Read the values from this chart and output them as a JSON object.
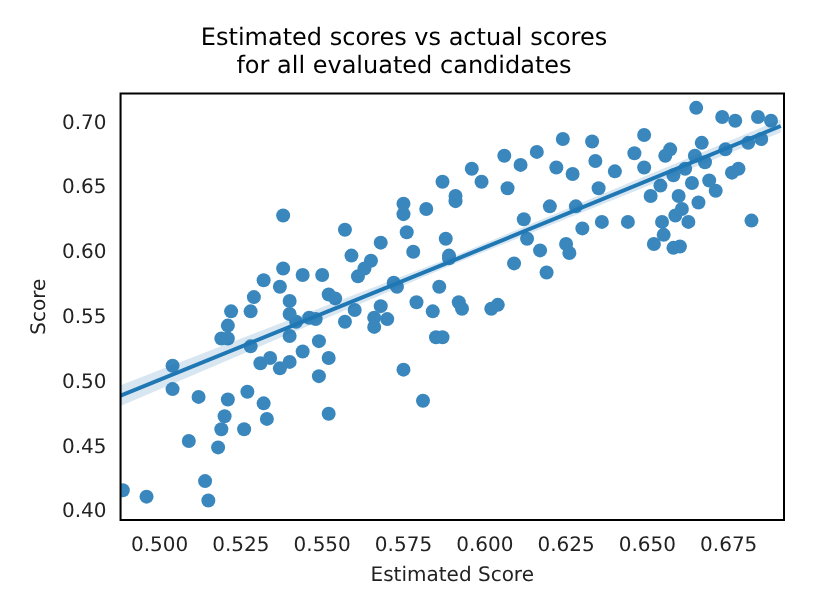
{
  "chart_data": {
    "type": "scatter",
    "title": "Estimated scores vs actual scores\nfor all evaluated candidates",
    "xlabel": "Estimated Score",
    "ylabel": "Score",
    "xlim": [
      0.488,
      0.692
    ],
    "ylim": [
      0.394,
      0.723
    ],
    "xticks": [
      {
        "value": 0.5,
        "label": "0.500"
      },
      {
        "value": 0.525,
        "label": "0.525"
      },
      {
        "value": 0.55,
        "label": "0.550"
      },
      {
        "value": 0.575,
        "label": "0.575"
      },
      {
        "value": 0.6,
        "label": "0.600"
      },
      {
        "value": 0.625,
        "label": "0.625"
      },
      {
        "value": 0.65,
        "label": "0.650"
      },
      {
        "value": 0.675,
        "label": "0.675"
      }
    ],
    "yticks": [
      {
        "value": 0.4,
        "label": "0.40"
      },
      {
        "value": 0.45,
        "label": "0.45"
      },
      {
        "value": 0.5,
        "label": "0.50"
      },
      {
        "value": 0.55,
        "label": "0.55"
      },
      {
        "value": 0.6,
        "label": "0.60"
      },
      {
        "value": 0.65,
        "label": "0.65"
      },
      {
        "value": 0.7,
        "label": "0.70"
      }
    ],
    "grid": false,
    "legend": false,
    "series": [
      {
        "marker": "circle",
        "color": "#3a87bd",
        "x": [
          0.4887,
          0.496,
          0.514,
          0.515,
          0.509,
          0.504,
          0.504,
          0.512,
          0.518,
          0.519,
          0.52,
          0.521,
          0.526,
          0.527,
          0.532,
          0.533,
          0.528,
          0.531,
          0.534,
          0.537,
          0.54,
          0.519,
          0.521,
          0.521,
          0.522,
          0.528,
          0.529,
          0.532,
          0.537,
          0.538,
          0.538,
          0.54,
          0.54,
          0.54,
          0.542,
          0.544,
          0.544,
          0.546,
          0.548,
          0.549,
          0.549,
          0.55,
          0.552,
          0.552,
          0.552,
          0.554,
          0.557,
          0.557,
          0.559,
          0.56,
          0.561,
          0.563,
          0.565,
          0.566,
          0.566,
          0.568,
          0.568,
          0.57,
          0.572,
          0.573,
          0.575,
          0.575,
          0.575,
          0.576,
          0.578,
          0.579,
          0.581,
          0.582,
          0.584,
          0.585,
          0.587,
          0.586,
          0.588,
          0.589,
          0.591,
          0.592,
          0.591,
          0.589,
          0.593,
          0.587,
          0.596,
          0.599,
          0.602,
          0.604,
          0.606,
          0.607,
          0.609,
          0.611,
          0.612,
          0.613,
          0.616,
          0.617,
          0.619,
          0.62,
          0.622,
          0.624,
          0.625,
          0.626,
          0.627,
          0.628,
          0.63,
          0.633,
          0.634,
          0.635,
          0.636,
          0.64,
          0.644,
          0.646,
          0.649,
          0.649,
          0.651,
          0.652,
          0.654,
          0.655,
          0.657,
          0.658,
          0.66,
          0.658,
          0.6596,
          0.6616,
          0.6637,
          0.6606,
          0.6646,
          0.6626,
          0.6657,
          0.6677,
          0.6586,
          0.6667,
          0.6555,
          0.6545,
          0.665,
          0.669,
          0.671,
          0.673,
          0.674,
          0.676,
          0.677,
          0.678,
          0.682,
          0.684,
          0.685,
          0.688,
          0.681
        ],
        "values": [
          0.417,
          0.412,
          0.424,
          0.409,
          0.455,
          0.513,
          0.495,
          0.489,
          0.45,
          0.464,
          0.474,
          0.487,
          0.464,
          0.493,
          0.484,
          0.472,
          0.528,
          0.515,
          0.519,
          0.511,
          0.516,
          0.534,
          0.534,
          0.544,
          0.555,
          0.555,
          0.566,
          0.579,
          0.574,
          0.588,
          0.629,
          0.563,
          0.553,
          0.536,
          0.547,
          0.583,
          0.524,
          0.55,
          0.549,
          0.532,
          0.505,
          0.583,
          0.519,
          0.476,
          0.568,
          0.565,
          0.618,
          0.547,
          0.598,
          0.556,
          0.582,
          0.588,
          0.594,
          0.55,
          0.543,
          0.559,
          0.608,
          0.549,
          0.577,
          0.574,
          0.63,
          0.638,
          0.51,
          0.616,
          0.601,
          0.562,
          0.486,
          0.634,
          0.555,
          0.535,
          0.655,
          0.574,
          0.611,
          0.596,
          0.64,
          0.562,
          0.644,
          0.598,
          0.557,
          0.535,
          0.665,
          0.655,
          0.557,
          0.56,
          0.675,
          0.65,
          0.592,
          0.668,
          0.626,
          0.611,
          0.678,
          0.602,
          0.585,
          0.636,
          0.666,
          0.688,
          0.607,
          0.6,
          0.661,
          0.636,
          0.619,
          0.686,
          0.671,
          0.65,
          0.624,
          0.663,
          0.624,
          0.677,
          0.666,
          0.691,
          0.644,
          0.607,
          0.652,
          0.614,
          0.68,
          0.604,
          0.605,
          0.66,
          0.644,
          0.665,
          0.654,
          0.634,
          0.675,
          0.624,
          0.639,
          0.67,
          0.629,
          0.685,
          0.675,
          0.624,
          0.712,
          0.656,
          0.648,
          0.705,
          0.68,
          0.662,
          0.702,
          0.665,
          0.625,
          0.705,
          0.688,
          0.702,
          0.685
        ]
      },
      {
        "type": "line",
        "color": "#1f77b4",
        "x": [
          0.488,
          0.59,
          0.691
        ],
        "values": [
          0.49,
          0.594,
          0.698
        ],
        "lower": [
          0.482,
          0.591,
          0.693
        ],
        "upper": [
          0.498,
          0.597,
          0.703
        ]
      }
    ]
  }
}
